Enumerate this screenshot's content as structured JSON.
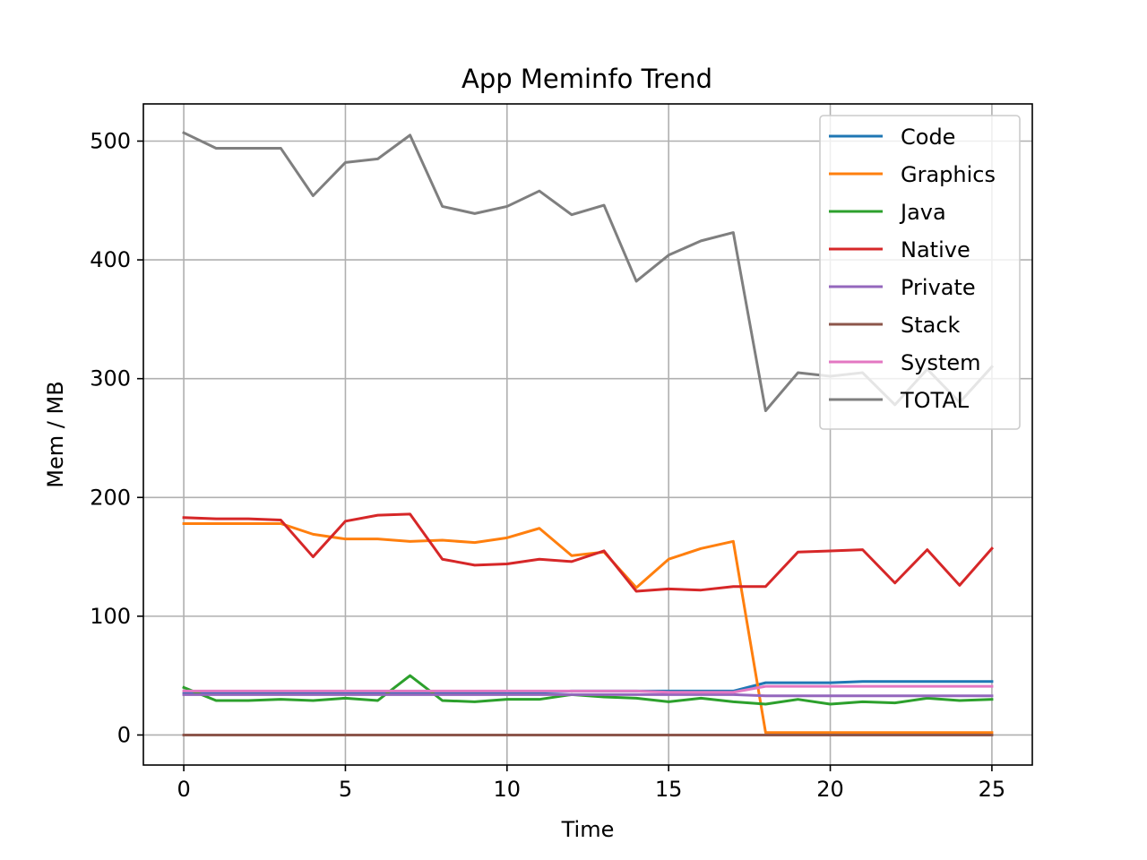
{
  "chart_data": {
    "type": "line",
    "title": "App Meminfo Trend",
    "xlabel": "Time",
    "ylabel": "Mem / MB",
    "xlim": [
      -1.25,
      26.25
    ],
    "ylim": [
      -25.3,
      531.3
    ],
    "xticks": [
      0,
      5,
      10,
      15,
      20,
      25
    ],
    "yticks": [
      0,
      100,
      200,
      300,
      400,
      500
    ],
    "grid": true,
    "legend_position": "top-right",
    "x": [
      0,
      1,
      2,
      3,
      4,
      5,
      6,
      7,
      8,
      9,
      10,
      11,
      12,
      13,
      14,
      15,
      16,
      17,
      18,
      19,
      20,
      21,
      22,
      23,
      24,
      25
    ],
    "series": [
      {
        "name": "Code",
        "color": "#1f77b4",
        "values": [
          35,
          35,
          35,
          35,
          35,
          35,
          35,
          36,
          36,
          36,
          36,
          36,
          37,
          37,
          37,
          37,
          37,
          37,
          44,
          44,
          44,
          45,
          45,
          45,
          45,
          45
        ]
      },
      {
        "name": "Graphics",
        "color": "#ff7f0e",
        "values": [
          178,
          178,
          178,
          178,
          169,
          165,
          165,
          163,
          164,
          162,
          166,
          174,
          151,
          154,
          124,
          148,
          157,
          163,
          2,
          2,
          2,
          2,
          2,
          2,
          2,
          2
        ]
      },
      {
        "name": "Java",
        "color": "#2ca02c",
        "values": [
          40,
          29,
          29,
          30,
          29,
          31,
          29,
          50,
          29,
          28,
          30,
          30,
          34,
          32,
          31,
          28,
          31,
          28,
          26,
          30,
          26,
          28,
          27,
          31,
          29,
          30
        ]
      },
      {
        "name": "Native",
        "color": "#d62728",
        "values": [
          183,
          182,
          182,
          181,
          150,
          180,
          185,
          186,
          148,
          143,
          144,
          148,
          146,
          155,
          121,
          123,
          122,
          125,
          125,
          154,
          155,
          156,
          128,
          156,
          126,
          157
        ]
      },
      {
        "name": "Private",
        "color": "#9467bd",
        "values": [
          34,
          34,
          34,
          34,
          34,
          34,
          34,
          34,
          34,
          34,
          34,
          34,
          34,
          34,
          34,
          34,
          34,
          34,
          33,
          33,
          33,
          33,
          33,
          33,
          33,
          33
        ]
      },
      {
        "name": "Stack",
        "color": "#8c564b",
        "values": [
          0,
          0,
          0,
          0,
          0,
          0,
          0,
          0,
          0,
          0,
          0,
          0,
          0,
          0,
          0,
          0,
          0,
          0,
          0,
          0,
          0,
          0,
          0,
          0,
          0,
          0
        ]
      },
      {
        "name": "System",
        "color": "#e377c2",
        "values": [
          37,
          37,
          37,
          37,
          37,
          37,
          37,
          37,
          37,
          37,
          37,
          37,
          37,
          37,
          37,
          36,
          36,
          36,
          41,
          41,
          41,
          41,
          41,
          41,
          41,
          41
        ]
      },
      {
        "name": "TOTAL",
        "color": "#7f7f7f",
        "values": [
          507,
          494,
          494,
          494,
          454,
          482,
          485,
          505,
          445,
          439,
          445,
          458,
          438,
          446,
          382,
          404,
          416,
          423,
          273,
          305,
          302,
          305,
          278,
          308,
          280,
          310
        ]
      }
    ]
  }
}
